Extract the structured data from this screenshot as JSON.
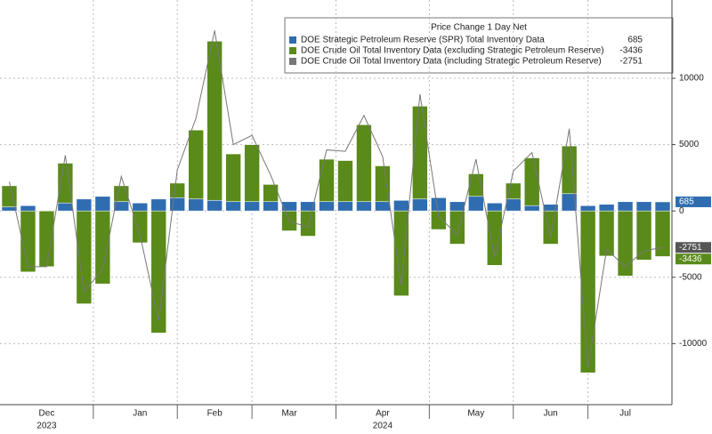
{
  "chart_data": {
    "type": "bar",
    "title": "Price Change 1 Day Net",
    "categories": [
      null,
      null,
      "Dec",
      null,
      null,
      null,
      null,
      "Jan",
      null,
      null,
      null,
      "Feb",
      null,
      null,
      null,
      "Mar",
      null,
      null,
      null,
      null,
      "Apr",
      null,
      null,
      null,
      null,
      "May",
      null,
      null,
      null,
      "Jun",
      null,
      null,
      null,
      "Jul",
      null,
      null
    ],
    "years": [
      null,
      null,
      "2023",
      null,
      null,
      null,
      null,
      null,
      null,
      null,
      null,
      null,
      null,
      null,
      null,
      null,
      null,
      null,
      null,
      null,
      "2024",
      null,
      null,
      null,
      null,
      null,
      null,
      null,
      null,
      null,
      null,
      null,
      null,
      null,
      null,
      null
    ],
    "series": [
      {
        "name": "DOE Crude Oil Total Inventory Data (excluding Strategic Petroleum Reserve)",
        "color": "#5a8a1a",
        "kind": "bar",
        "values": [
          1900,
          -4600,
          -4200,
          3600,
          -7000,
          -5500,
          1900,
          -2400,
          -9200,
          2100,
          6100,
          12800,
          4300,
          5000,
          2000,
          -1500,
          -1900,
          3900,
          3800,
          6500,
          3400,
          -6400,
          7900,
          -1400,
          -2500,
          2800,
          -4100,
          2100,
          4000,
          -2500,
          4900,
          -12200,
          -3400,
          -4900,
          -3700,
          -3436
        ]
      },
      {
        "name": "DOE Strategic Petroleum Reserve (SPR) Total Inventory Data",
        "color": "#2f6db0",
        "kind": "bar",
        "values": [
          300,
          400,
          0,
          600,
          900,
          1100,
          700,
          600,
          900,
          1000,
          900,
          800,
          700,
          700,
          700,
          700,
          700,
          700,
          700,
          700,
          700,
          800,
          900,
          1000,
          700,
          1100,
          600,
          900,
          400,
          500,
          1300,
          400,
          500,
          700,
          700,
          685
        ]
      },
      {
        "name": "DOE Crude Oil Total Inventory Data (including Strategic Petroleum Reserve)",
        "color": "#777777",
        "kind": "line",
        "values": [
          2200,
          -4200,
          -4200,
          4200,
          -6100,
          -4400,
          2600,
          -1800,
          -8300,
          3100,
          7000,
          13600,
          5000,
          5700,
          2700,
          -800,
          -1200,
          4600,
          4500,
          7200,
          4100,
          -5600,
          8800,
          -400,
          -1800,
          3900,
          -3500,
          3000,
          4400,
          -2000,
          6200,
          -11800,
          -2900,
          -4200,
          -3000,
          -2751
        ]
      }
    ],
    "legend_order": [
      1,
      0,
      2
    ],
    "ylim": [
      -14600,
      15900
    ],
    "yticks": [
      10000,
      5000,
      0,
      -5000,
      -10000
    ],
    "grid": true
  }
}
